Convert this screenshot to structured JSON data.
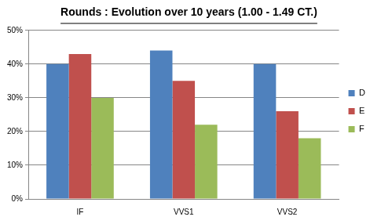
{
  "chart_data": {
    "type": "bar",
    "title": "Rounds : Evolution over 10 years (1.00 - 1.49 CT.)",
    "categories": [
      "IF",
      "VVS1",
      "VVS2"
    ],
    "series": [
      {
        "name": "D",
        "color": "#4f81bd",
        "values": [
          40,
          44,
          40
        ]
      },
      {
        "name": "E",
        "color": "#c0504d",
        "values": [
          43,
          35,
          26
        ]
      },
      {
        "name": "F",
        "color": "#9bbb59",
        "values": [
          30,
          22,
          18
        ]
      }
    ],
    "ylim": [
      0,
      50
    ],
    "yticks": [
      {
        "value": 0,
        "label": "0%"
      },
      {
        "value": 10,
        "label": "10%"
      },
      {
        "value": 20,
        "label": "20%"
      },
      {
        "value": 30,
        "label": "30%"
      },
      {
        "value": 40,
        "label": "40%"
      },
      {
        "value": 50,
        "label": "50%"
      }
    ],
    "grid": true,
    "legend": "right"
  }
}
